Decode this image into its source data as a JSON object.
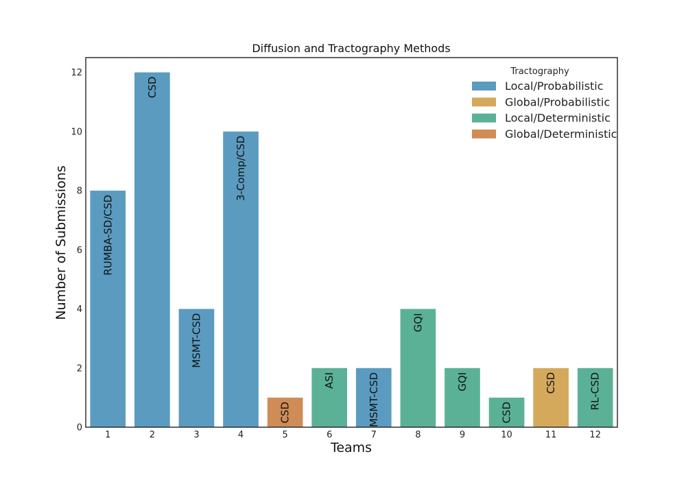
{
  "chart_data": {
    "type": "bar",
    "title": "Diffusion and Tractography Methods",
    "xlabel": "Teams",
    "ylabel": "Number of Submissions",
    "ylim": [
      0,
      12.5
    ],
    "yticks": [
      0,
      2,
      4,
      6,
      8,
      10,
      12
    ],
    "categories": [
      "1",
      "2",
      "3",
      "4",
      "5",
      "6",
      "7",
      "8",
      "9",
      "10",
      "11",
      "12"
    ],
    "values": [
      8,
      12,
      4,
      10,
      1,
      2,
      2,
      4,
      2,
      1,
      2,
      2
    ],
    "bar_labels": [
      "RUMBA-SD/CSD",
      "CSD",
      "MSMT-CSD",
      "3-Comp/CSD",
      "CSD",
      "ASI",
      "MSMT-CSD",
      "GQI",
      "GQI",
      "CSD",
      "CSD",
      "RL-CSD"
    ],
    "bar_groups": [
      "Local/Probabilistic",
      "Local/Probabilistic",
      "Local/Probabilistic",
      "Local/Probabilistic",
      "Global/Deterministic",
      "Local/Deterministic",
      "Local/Probabilistic",
      "Local/Deterministic",
      "Local/Deterministic",
      "Local/Deterministic",
      "Global/Probabilistic",
      "Local/Deterministic"
    ],
    "legend": {
      "title": "Tractography",
      "position": "top-right",
      "entries": [
        {
          "name": "Local/Probabilistic",
          "color": "#5b9bc0"
        },
        {
          "name": "Global/Probabilistic",
          "color": "#d5a95c"
        },
        {
          "name": "Local/Deterministic",
          "color": "#5bb196"
        },
        {
          "name": "Global/Deterministic",
          "color": "#cf8c57"
        }
      ]
    },
    "grid": false
  }
}
